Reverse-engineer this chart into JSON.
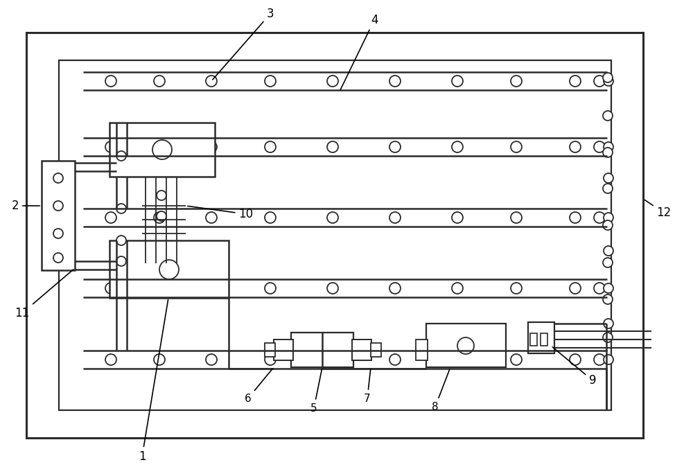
{
  "bg_color": "#ffffff",
  "line_color": "#2a2a2a",
  "fig_width": 10.0,
  "fig_height": 6.87,
  "dpi": 100
}
